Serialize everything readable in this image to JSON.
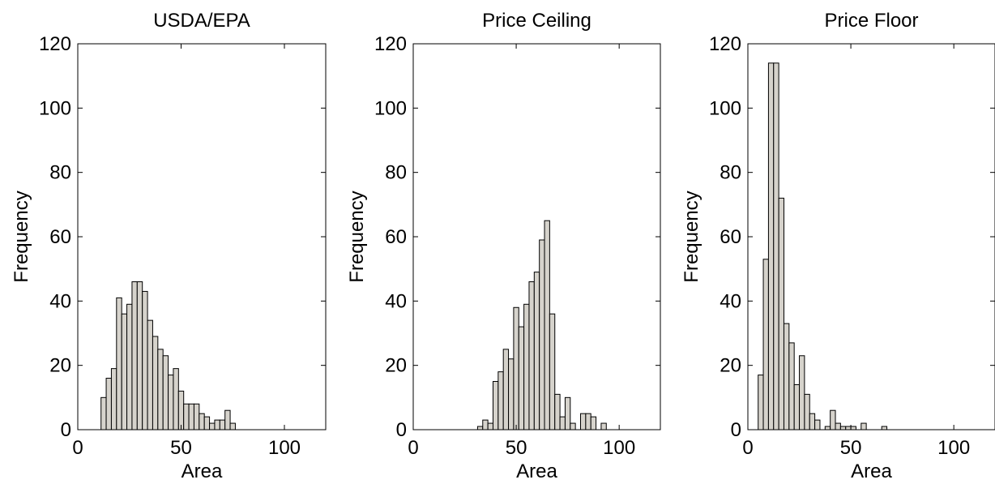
{
  "chart_data": [
    {
      "type": "bar",
      "subtype": "histogram",
      "title": "USDA/EPA",
      "xlabel": "Area",
      "ylabel": "Frequency",
      "xlim": [
        0,
        120
      ],
      "ylim": [
        0,
        120
      ],
      "xticks": [
        0,
        50,
        100
      ],
      "yticks": [
        0,
        20,
        40,
        60,
        80,
        100,
        120
      ],
      "grid": false,
      "bar_color": "#d6d3cc",
      "bin_width": 2.5,
      "bins": [
        {
          "x": 12.5,
          "count": 10
        },
        {
          "x": 15,
          "count": 16
        },
        {
          "x": 17.5,
          "count": 19
        },
        {
          "x": 20,
          "count": 41
        },
        {
          "x": 22.5,
          "count": 36
        },
        {
          "x": 25,
          "count": 39
        },
        {
          "x": 27.5,
          "count": 46
        },
        {
          "x": 30,
          "count": 46
        },
        {
          "x": 32.5,
          "count": 43
        },
        {
          "x": 35,
          "count": 34
        },
        {
          "x": 37.5,
          "count": 29
        },
        {
          "x": 40,
          "count": 25
        },
        {
          "x": 42.5,
          "count": 23
        },
        {
          "x": 45,
          "count": 17
        },
        {
          "x": 47.5,
          "count": 19
        },
        {
          "x": 50,
          "count": 12
        },
        {
          "x": 52.5,
          "count": 8
        },
        {
          "x": 55,
          "count": 8
        },
        {
          "x": 57.5,
          "count": 8
        },
        {
          "x": 60,
          "count": 5
        },
        {
          "x": 62.5,
          "count": 4
        },
        {
          "x": 65,
          "count": 2
        },
        {
          "x": 67.5,
          "count": 3
        },
        {
          "x": 70,
          "count": 3
        },
        {
          "x": 72.5,
          "count": 6
        },
        {
          "x": 75,
          "count": 2
        }
      ]
    },
    {
      "type": "bar",
      "subtype": "histogram",
      "title": "Price Ceiling",
      "xlabel": "Area",
      "ylabel": "Frequency",
      "xlim": [
        0,
        120
      ],
      "ylim": [
        0,
        120
      ],
      "xticks": [
        0,
        50,
        100
      ],
      "yticks": [
        0,
        20,
        40,
        60,
        80,
        100,
        120
      ],
      "grid": false,
      "bar_color": "#d6d3cc",
      "bin_width": 2.5,
      "bins": [
        {
          "x": 32.5,
          "count": 1
        },
        {
          "x": 35,
          "count": 3
        },
        {
          "x": 37.5,
          "count": 2
        },
        {
          "x": 40,
          "count": 15
        },
        {
          "x": 42.5,
          "count": 18
        },
        {
          "x": 45,
          "count": 25
        },
        {
          "x": 47.5,
          "count": 22
        },
        {
          "x": 50,
          "count": 38
        },
        {
          "x": 52.5,
          "count": 32
        },
        {
          "x": 55,
          "count": 39
        },
        {
          "x": 57.5,
          "count": 46
        },
        {
          "x": 60,
          "count": 49
        },
        {
          "x": 62.5,
          "count": 59
        },
        {
          "x": 65,
          "count": 65
        },
        {
          "x": 67.5,
          "count": 36
        },
        {
          "x": 70,
          "count": 11
        },
        {
          "x": 72.5,
          "count": 4
        },
        {
          "x": 75,
          "count": 10
        },
        {
          "x": 77.5,
          "count": 2
        },
        {
          "x": 80,
          "count": 0
        },
        {
          "x": 82.5,
          "count": 5
        },
        {
          "x": 85,
          "count": 5
        },
        {
          "x": 87.5,
          "count": 4
        },
        {
          "x": 90,
          "count": 0
        },
        {
          "x": 92.5,
          "count": 2
        }
      ]
    },
    {
      "type": "bar",
      "subtype": "histogram",
      "title": "Price Floor",
      "xlabel": "Area",
      "ylabel": "Frequency",
      "xlim": [
        0,
        120
      ],
      "ylim": [
        0,
        120
      ],
      "xticks": [
        0,
        50,
        100
      ],
      "yticks": [
        0,
        20,
        40,
        60,
        80,
        100,
        120
      ],
      "grid": false,
      "bar_color": "#d6d3cc",
      "bin_width": 2.5,
      "bins": [
        {
          "x": 6.25,
          "count": 17
        },
        {
          "x": 8.75,
          "count": 53
        },
        {
          "x": 11.25,
          "count": 114
        },
        {
          "x": 13.75,
          "count": 114
        },
        {
          "x": 16.25,
          "count": 72
        },
        {
          "x": 18.75,
          "count": 33
        },
        {
          "x": 21.25,
          "count": 27
        },
        {
          "x": 23.75,
          "count": 14
        },
        {
          "x": 26.25,
          "count": 23
        },
        {
          "x": 28.75,
          "count": 11
        },
        {
          "x": 31.25,
          "count": 5
        },
        {
          "x": 33.75,
          "count": 3
        },
        {
          "x": 36.25,
          "count": 0
        },
        {
          "x": 38.75,
          "count": 1
        },
        {
          "x": 41.25,
          "count": 6
        },
        {
          "x": 43.75,
          "count": 2
        },
        {
          "x": 46.25,
          "count": 1
        },
        {
          "x": 48.75,
          "count": 1
        },
        {
          "x": 51.25,
          "count": 1
        },
        {
          "x": 53.75,
          "count": 0
        },
        {
          "x": 56.25,
          "count": 2
        },
        {
          "x": 58.75,
          "count": 0
        },
        {
          "x": 61.25,
          "count": 0
        },
        {
          "x": 63.75,
          "count": 0
        },
        {
          "x": 66.25,
          "count": 1
        }
      ]
    }
  ]
}
